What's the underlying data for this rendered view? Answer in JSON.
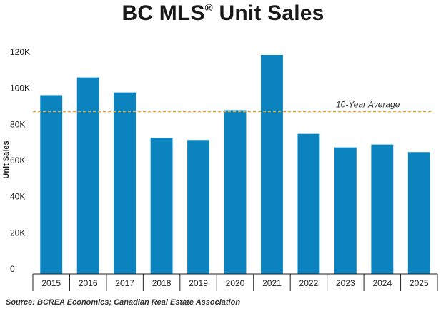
{
  "chart_data": {
    "type": "bar",
    "title": "BC MLS",
    "title_mark": "®",
    "title_suffix": " Unit Sales",
    "ylabel": "Unit Sales",
    "xlabel": "",
    "categories": [
      "2015",
      "2016",
      "2017",
      "2018",
      "2019",
      "2020",
      "2021",
      "2022",
      "2023",
      "2024",
      "2025"
    ],
    "values": [
      98900,
      108700,
      100400,
      75300,
      74100,
      90600,
      121200,
      77500,
      70000,
      71600,
      67400
    ],
    "ylim": [
      0,
      120000
    ],
    "yticks": [
      0,
      20000,
      40000,
      60000,
      80000,
      100000,
      120000
    ],
    "ytick_labels": [
      "0",
      "20K",
      "40K",
      "60K",
      "80K",
      "100K",
      "120K"
    ],
    "reference_line": {
      "label": "10-Year Average",
      "value": 89800,
      "color": "#e8a020"
    },
    "bar_color": "#0a83bf",
    "grid": false,
    "source": "Source: BCREA Economics; Canadian Real Estate Association"
  }
}
